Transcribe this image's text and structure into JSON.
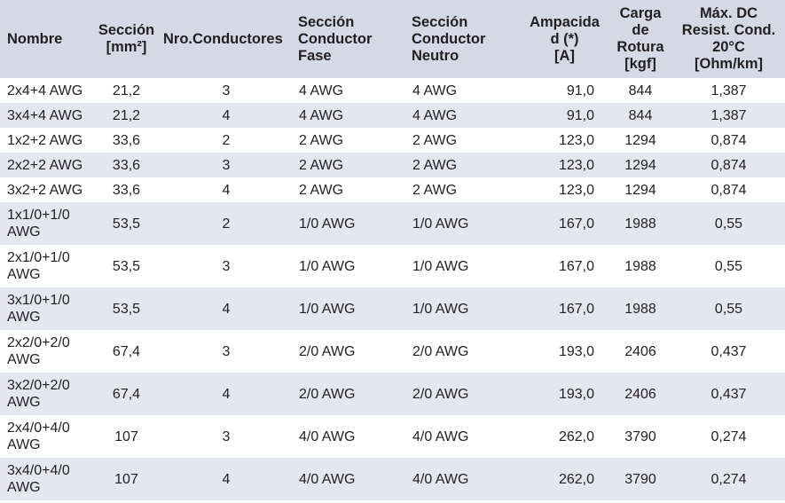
{
  "table": {
    "headers": {
      "nombre": "Nombre",
      "seccion_line1": "Sección",
      "seccion_line2": "[mm²]",
      "conductores": "Nro.Conductores",
      "fase_line1": "Sección",
      "fase_line2": "Conductor",
      "fase_line3": "Fase",
      "neutro_line1": "Sección",
      "neutro_line2": "Conductor",
      "neutro_line3": "Neutro",
      "ampacidad_line1": "Ampacida",
      "ampacidad_line2": "d (*)",
      "ampacidad_line3": "[A]",
      "carga_line1": "Carga",
      "carga_line2": "de",
      "carga_line3": "Rotura",
      "carga_line4": "[kgf]",
      "resist_line1": "Máx. DC",
      "resist_line2": "Resist. Cond.",
      "resist_line3": "20°C",
      "resist_line4": "[Ohm/km]"
    },
    "rows": [
      {
        "nombre_1": "2x4+4 AWG",
        "nombre_2": "",
        "seccion": "21,2",
        "conductores": "3",
        "fase": "4 AWG",
        "neutro": "4 AWG",
        "ampacidad": "91,0",
        "carga": "844",
        "resistencia": "1,387"
      },
      {
        "nombre_1": "3x4+4 AWG",
        "nombre_2": "",
        "seccion": "21,2",
        "conductores": "4",
        "fase": "4 AWG",
        "neutro": "4 AWG",
        "ampacidad": "91,0",
        "carga": "844",
        "resistencia": "1,387"
      },
      {
        "nombre_1": "1x2+2 AWG",
        "nombre_2": "",
        "seccion": "33,6",
        "conductores": "2",
        "fase": "2 AWG",
        "neutro": "2 AWG",
        "ampacidad": "123,0",
        "carga": "1294",
        "resistencia": "0,874"
      },
      {
        "nombre_1": "2x2+2 AWG",
        "nombre_2": "",
        "seccion": "33,6",
        "conductores": "3",
        "fase": "2 AWG",
        "neutro": "2 AWG",
        "ampacidad": "123,0",
        "carga": "1294",
        "resistencia": "0,874"
      },
      {
        "nombre_1": "3x2+2 AWG",
        "nombre_2": "",
        "seccion": "33,6",
        "conductores": "4",
        "fase": "2 AWG",
        "neutro": "2 AWG",
        "ampacidad": "123,0",
        "carga": "1294",
        "resistencia": "0,874"
      },
      {
        "nombre_1": "1x1/0+1/0",
        "nombre_2": "AWG",
        "seccion": "53,5",
        "conductores": "2",
        "fase": "1/0 AWG",
        "neutro": "1/0 AWG",
        "ampacidad": "167,0",
        "carga": "1988",
        "resistencia": "0,55"
      },
      {
        "nombre_1": "2x1/0+1/0",
        "nombre_2": "AWG",
        "seccion": "53,5",
        "conductores": "3",
        "fase": "1/0 AWG",
        "neutro": "1/0 AWG",
        "ampacidad": "167,0",
        "carga": "1988",
        "resistencia": "0,55"
      },
      {
        "nombre_1": "3x1/0+1/0",
        "nombre_2": "AWG",
        "seccion": "53,5",
        "conductores": "4",
        "fase": "1/0 AWG",
        "neutro": "1/0 AWG",
        "ampacidad": "167,0",
        "carga": "1988",
        "resistencia": "0,55"
      },
      {
        "nombre_1": "2x2/0+2/0",
        "nombre_2": "AWG",
        "seccion": "67,4",
        "conductores": "3",
        "fase": "2/0 AWG",
        "neutro": "2/0 AWG",
        "ampacidad": "193,0",
        "carga": "2406",
        "resistencia": "0,437"
      },
      {
        "nombre_1": "3x2/0+2/0",
        "nombre_2": "AWG",
        "seccion": "67,4",
        "conductores": "4",
        "fase": "2/0 AWG",
        "neutro": "2/0 AWG",
        "ampacidad": "193,0",
        "carga": "2406",
        "resistencia": "0,437"
      },
      {
        "nombre_1": "2x4/0+4/0",
        "nombre_2": "AWG",
        "seccion": "107",
        "conductores": "3",
        "fase": "4/0 AWG",
        "neutro": "4/0 AWG",
        "ampacidad": "262,0",
        "carga": "3790",
        "resistencia": "0,274"
      },
      {
        "nombre_1": "3x4/0+4/0",
        "nombre_2": "AWG",
        "seccion": "107",
        "conductores": "4",
        "fase": "4/0 AWG",
        "neutro": "4/0 AWG",
        "ampacidad": "262,0",
        "carga": "3790",
        "resistencia": "0,274"
      }
    ]
  }
}
